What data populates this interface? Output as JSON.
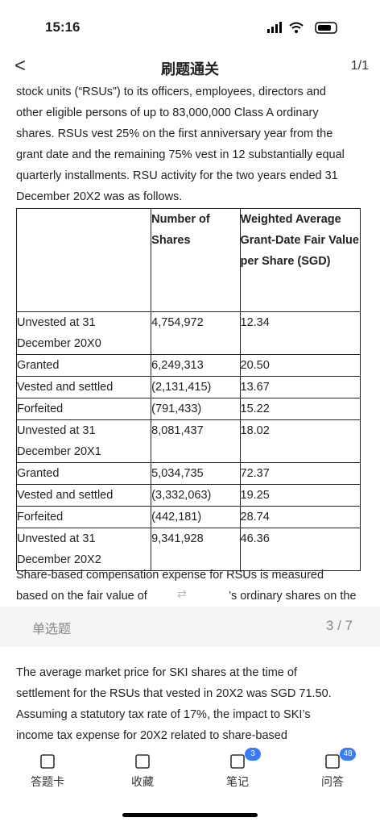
{
  "status_bar": {
    "time": "15:16"
  },
  "nav": {
    "back": "<",
    "title": "刷题通关",
    "page": "1/1"
  },
  "passage": {
    "lines": [
      "stock units (“RSUs”) to its officers, employees, directors and",
      "other eligible persons of up to 83,000,000 Class A ordinary",
      "shares. RSUs vest 25% on the first anniversary year from the",
      "grant date and the remaining 75% vest in 12 substantially equal",
      "quarterly installments. RSU activity for the two years ended 31",
      "December 20X2 was as follows."
    ]
  },
  "table": {
    "header": [
      "",
      "Number of Shares",
      "Weighted Average Grant-Date Fair Value per Share (SGD)"
    ],
    "rows": [
      [
        "Unvested at 31 December 20X0",
        "4,754,972",
        "12.34"
      ],
      [
        "Granted",
        "6,249,313",
        "20.50"
      ],
      [
        "Vested and settled",
        "(2,131,415)",
        "13.67"
      ],
      [
        "Forfeited",
        "(791,433)",
        "15.22"
      ],
      [
        "Unvested at 31 December 20X1",
        "8,081,437",
        "18.02"
      ],
      [
        "Granted",
        "5,034,735",
        "72.37"
      ],
      [
        "Vested and settled",
        "(3,332,063)",
        "19.25"
      ],
      [
        "Forfeited",
        "(442,181)",
        "28.74"
      ],
      [
        "Unvested at 31 December 20X2",
        "9,341,928",
        "46.36"
      ]
    ]
  },
  "after_table": {
    "lines": [
      "Share-based compensation expense for RSUs is measured",
      "based on the fair value of",
      "’s ordinary shares on the"
    ]
  },
  "question": {
    "type": "单选题",
    "progress": "3 / 7",
    "lines": [
      "The average market price for SKI shares at the time of",
      "settlement for the RSUs that vested in 20X2 was SGD 71.50.",
      "Assuming a statutory tax rate of 17%, the impact to SKI’s",
      "income tax expense for 20X2 related to share-based"
    ]
  },
  "tabs": [
    {
      "label": "答题卡"
    },
    {
      "label": "收藏"
    },
    {
      "label": "笔记",
      "badge": "3"
    },
    {
      "label": "问答",
      "badge": "48"
    }
  ]
}
